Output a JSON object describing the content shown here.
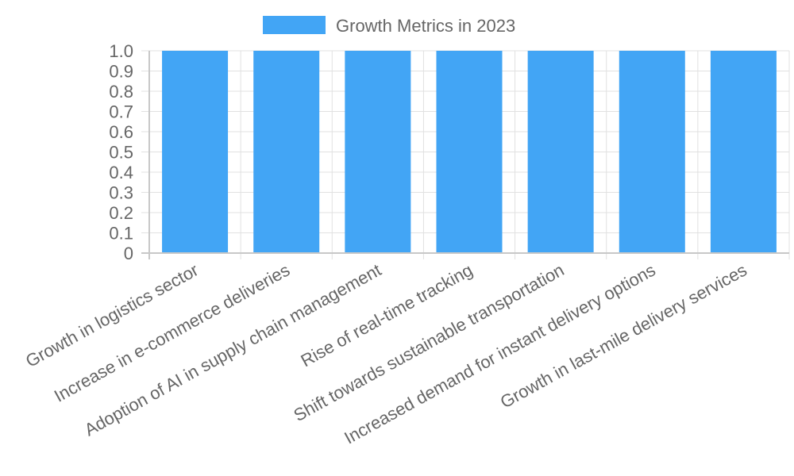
{
  "chart_data": {
    "type": "bar",
    "categories": [
      "Growth in logistics sector",
      "Increase in e-commerce deliveries",
      "Adoption of AI in supply chain management",
      "Rise of real-time tracking",
      "Shift towards sustainable transportation",
      "Increased demand for instant delivery options",
      "Growth in last-mile delivery services"
    ],
    "series": [
      {
        "name": "Growth Metrics in 2023",
        "values": [
          1,
          1,
          1,
          1,
          1,
          1,
          1
        ],
        "color": "#42a5f5"
      }
    ],
    "ylim": [
      0,
      1
    ],
    "yticks": [
      "0",
      "0.1",
      "0.2",
      "0.3",
      "0.4",
      "0.5",
      "0.6",
      "0.7",
      "0.8",
      "0.9",
      "1.0"
    ],
    "grid": true,
    "legend": "top-center"
  }
}
